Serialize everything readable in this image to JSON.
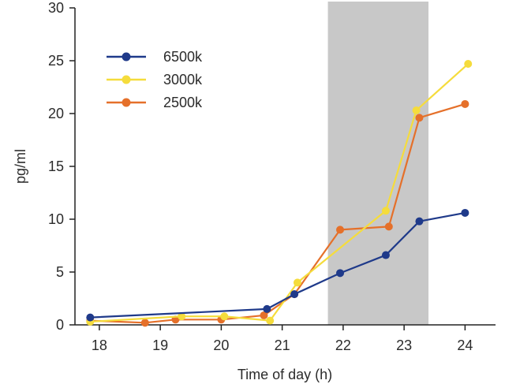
{
  "chart_data": {
    "type": "line",
    "xlabel": "Time of day (h)",
    "ylabel": "pg/ml",
    "xlim": [
      17.6,
      24.5
    ],
    "ylim": [
      0,
      30
    ],
    "xticks": [
      18,
      19,
      20,
      21,
      22,
      23,
      24
    ],
    "yticks": [
      0,
      5,
      10,
      15,
      20,
      25,
      30
    ],
    "shaded_region": {
      "x": [
        21.75,
        23.4
      ],
      "color": "#c8c8c8"
    },
    "legend": "top-left",
    "grid": false,
    "series": [
      {
        "name": "6500k",
        "color": "#1f3a8a",
        "x": [
          17.85,
          20.75,
          21.2,
          21.95,
          22.7,
          23.25,
          24.0
        ],
        "y": [
          0.7,
          1.5,
          2.9,
          4.9,
          6.6,
          9.8,
          10.6
        ]
      },
      {
        "name": "3000k",
        "color": "#f5dc3c",
        "x": [
          17.85,
          19.35,
          20.05,
          20.8,
          21.25,
          22.7,
          23.2,
          24.05
        ],
        "y": [
          0.3,
          0.8,
          0.8,
          0.4,
          4.0,
          10.8,
          20.3,
          24.7
        ]
      },
      {
        "name": "2500k",
        "color": "#e5702a",
        "x": [
          17.85,
          18.75,
          19.25,
          20.0,
          20.7,
          21.2,
          21.95,
          22.75,
          23.25,
          24.0
        ],
        "y": [
          0.4,
          0.2,
          0.5,
          0.5,
          0.9,
          2.9,
          9.0,
          9.3,
          19.6,
          20.9
        ]
      }
    ]
  }
}
